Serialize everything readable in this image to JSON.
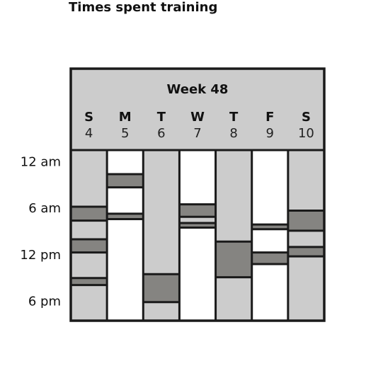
{
  "chart_data": {
    "type": "table",
    "title": "Times spent training",
    "week_label": "Week 48",
    "days": [
      {
        "abbr": "S",
        "num": "4"
      },
      {
        "abbr": "M",
        "num": "5"
      },
      {
        "abbr": "T",
        "num": "6"
      },
      {
        "abbr": "W",
        "num": "7"
      },
      {
        "abbr": "T",
        "num": "8"
      },
      {
        "abbr": "F",
        "num": "9"
      },
      {
        "abbr": "S",
        "num": "10"
      }
    ],
    "y_ticks": [
      {
        "label": "12 am",
        "hour": 1.5
      },
      {
        "label": "6 am",
        "hour": 7.5
      },
      {
        "label": "12 pm",
        "hour": 13.5
      },
      {
        "label": "6 pm",
        "hour": 19.5
      }
    ],
    "hour_range": [
      0,
      22
    ],
    "columns": [
      [
        {
          "start": 0,
          "end": 7.3,
          "kind": "light"
        },
        {
          "start": 7.3,
          "end": 9.1,
          "kind": "dark"
        },
        {
          "start": 9.1,
          "end": 11.5,
          "kind": "light"
        },
        {
          "start": 11.5,
          "end": 13.2,
          "kind": "dark"
        },
        {
          "start": 13.2,
          "end": 16.5,
          "kind": "light"
        },
        {
          "start": 16.5,
          "end": 17.4,
          "kind": "dark"
        },
        {
          "start": 17.4,
          "end": 22,
          "kind": "light"
        }
      ],
      [
        {
          "start": 0,
          "end": 3.1,
          "kind": "white"
        },
        {
          "start": 3.1,
          "end": 4.8,
          "kind": "dark"
        },
        {
          "start": 4.8,
          "end": 8.2,
          "kind": "white"
        },
        {
          "start": 8.2,
          "end": 8.9,
          "kind": "dark"
        },
        {
          "start": 8.9,
          "end": 22,
          "kind": "white"
        }
      ],
      [
        {
          "start": 0,
          "end": 16.0,
          "kind": "light"
        },
        {
          "start": 16.0,
          "end": 19.6,
          "kind": "dark"
        },
        {
          "start": 19.6,
          "end": 22,
          "kind": "light"
        }
      ],
      [
        {
          "start": 0,
          "end": 7.0,
          "kind": "white"
        },
        {
          "start": 7.0,
          "end": 8.6,
          "kind": "dark"
        },
        {
          "start": 8.6,
          "end": 9.4,
          "kind": "light"
        },
        {
          "start": 9.4,
          "end": 10.0,
          "kind": "dark"
        },
        {
          "start": 10.0,
          "end": 22,
          "kind": "white"
        }
      ],
      [
        {
          "start": 0,
          "end": 11.8,
          "kind": "light"
        },
        {
          "start": 11.8,
          "end": 16.4,
          "kind": "dark"
        },
        {
          "start": 16.4,
          "end": 22,
          "kind": "light"
        }
      ],
      [
        {
          "start": 0,
          "end": 9.6,
          "kind": "white"
        },
        {
          "start": 9.6,
          "end": 10.2,
          "kind": "dark"
        },
        {
          "start": 10.2,
          "end": 13.2,
          "kind": "white"
        },
        {
          "start": 13.2,
          "end": 14.7,
          "kind": "dark"
        },
        {
          "start": 14.7,
          "end": 22,
          "kind": "white"
        }
      ],
      [
        {
          "start": 0,
          "end": 7.8,
          "kind": "light"
        },
        {
          "start": 7.8,
          "end": 10.4,
          "kind": "dark"
        },
        {
          "start": 10.4,
          "end": 12.5,
          "kind": "light"
        },
        {
          "start": 12.5,
          "end": 13.7,
          "kind": "dark"
        },
        {
          "start": 13.7,
          "end": 22,
          "kind": "light"
        }
      ]
    ],
    "colors": {
      "light": "#cccccc",
      "dark": "#858481",
      "white": "#ffffff",
      "border": "#1a1a1a"
    }
  }
}
